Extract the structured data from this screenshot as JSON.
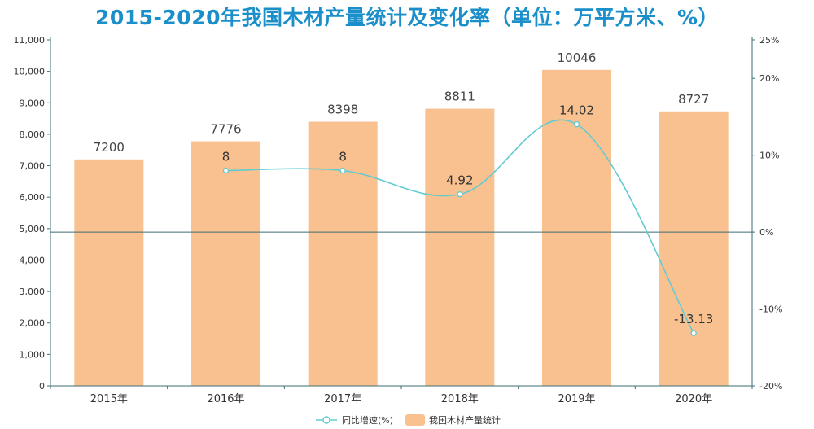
{
  "colors": {
    "title": "#1a8fc9",
    "bar": "#f9c18f",
    "line": "#62cbd1",
    "axis": "#3d6d73",
    "text": "#333333"
  },
  "chart_data": {
    "type": "bar",
    "title": "2015-2020年我国木材产量统计及变化率（单位：万平方米、%）",
    "categories": [
      "2015年",
      "2016年",
      "2017年",
      "2018年",
      "2019年",
      "2020年"
    ],
    "series": [
      {
        "name": "我国木材产量统计",
        "type": "bar",
        "axis": "left",
        "values": [
          7200,
          7776,
          8398,
          8811,
          10046,
          8727
        ],
        "labels": [
          "7200",
          "7776",
          "8398",
          "8811",
          "10046",
          "8727"
        ]
      },
      {
        "name": "同比增速(%)",
        "type": "line",
        "axis": "right",
        "values": [
          null,
          8,
          8,
          4.92,
          14.02,
          -13.13
        ],
        "labels": [
          "",
          "8",
          "8",
          "4.92",
          "14.02",
          "-13.13"
        ]
      }
    ],
    "left_axis": {
      "ylim": [
        0,
        11000
      ],
      "ticks": [
        "0",
        "1,000",
        "2,000",
        "3,000",
        "4,000",
        "5,000",
        "6,000",
        "7,000",
        "8,000",
        "9,000",
        "10,000",
        "11,000"
      ]
    },
    "right_axis": {
      "ylim": [
        -20,
        25
      ],
      "ticks": [
        "-20%",
        "-10%",
        "0%",
        "10%",
        "20%",
        "25%"
      ],
      "tick_values": [
        -20,
        -10,
        0,
        10,
        20,
        25
      ]
    },
    "legend": {
      "position": "bottom-center",
      "items": [
        "同比增速(%)",
        "我国木材产量统计"
      ]
    }
  }
}
